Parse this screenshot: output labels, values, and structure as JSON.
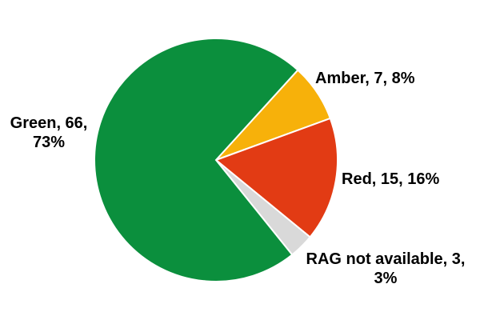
{
  "chart_data": {
    "type": "pie",
    "categories": [
      "Amber",
      "Red",
      "RAG not available",
      "Green"
    ],
    "values": [
      7,
      15,
      3,
      66
    ],
    "value_labels": [
      "Amber, 7, 8%",
      "Red, 15, 16%",
      "RAG not available, 3, 3%",
      "Green, 66, 73%"
    ],
    "colors": [
      "#f7b10a",
      "#e23b14",
      "#d9d9d9",
      "#0b8f3d"
    ]
  }
}
